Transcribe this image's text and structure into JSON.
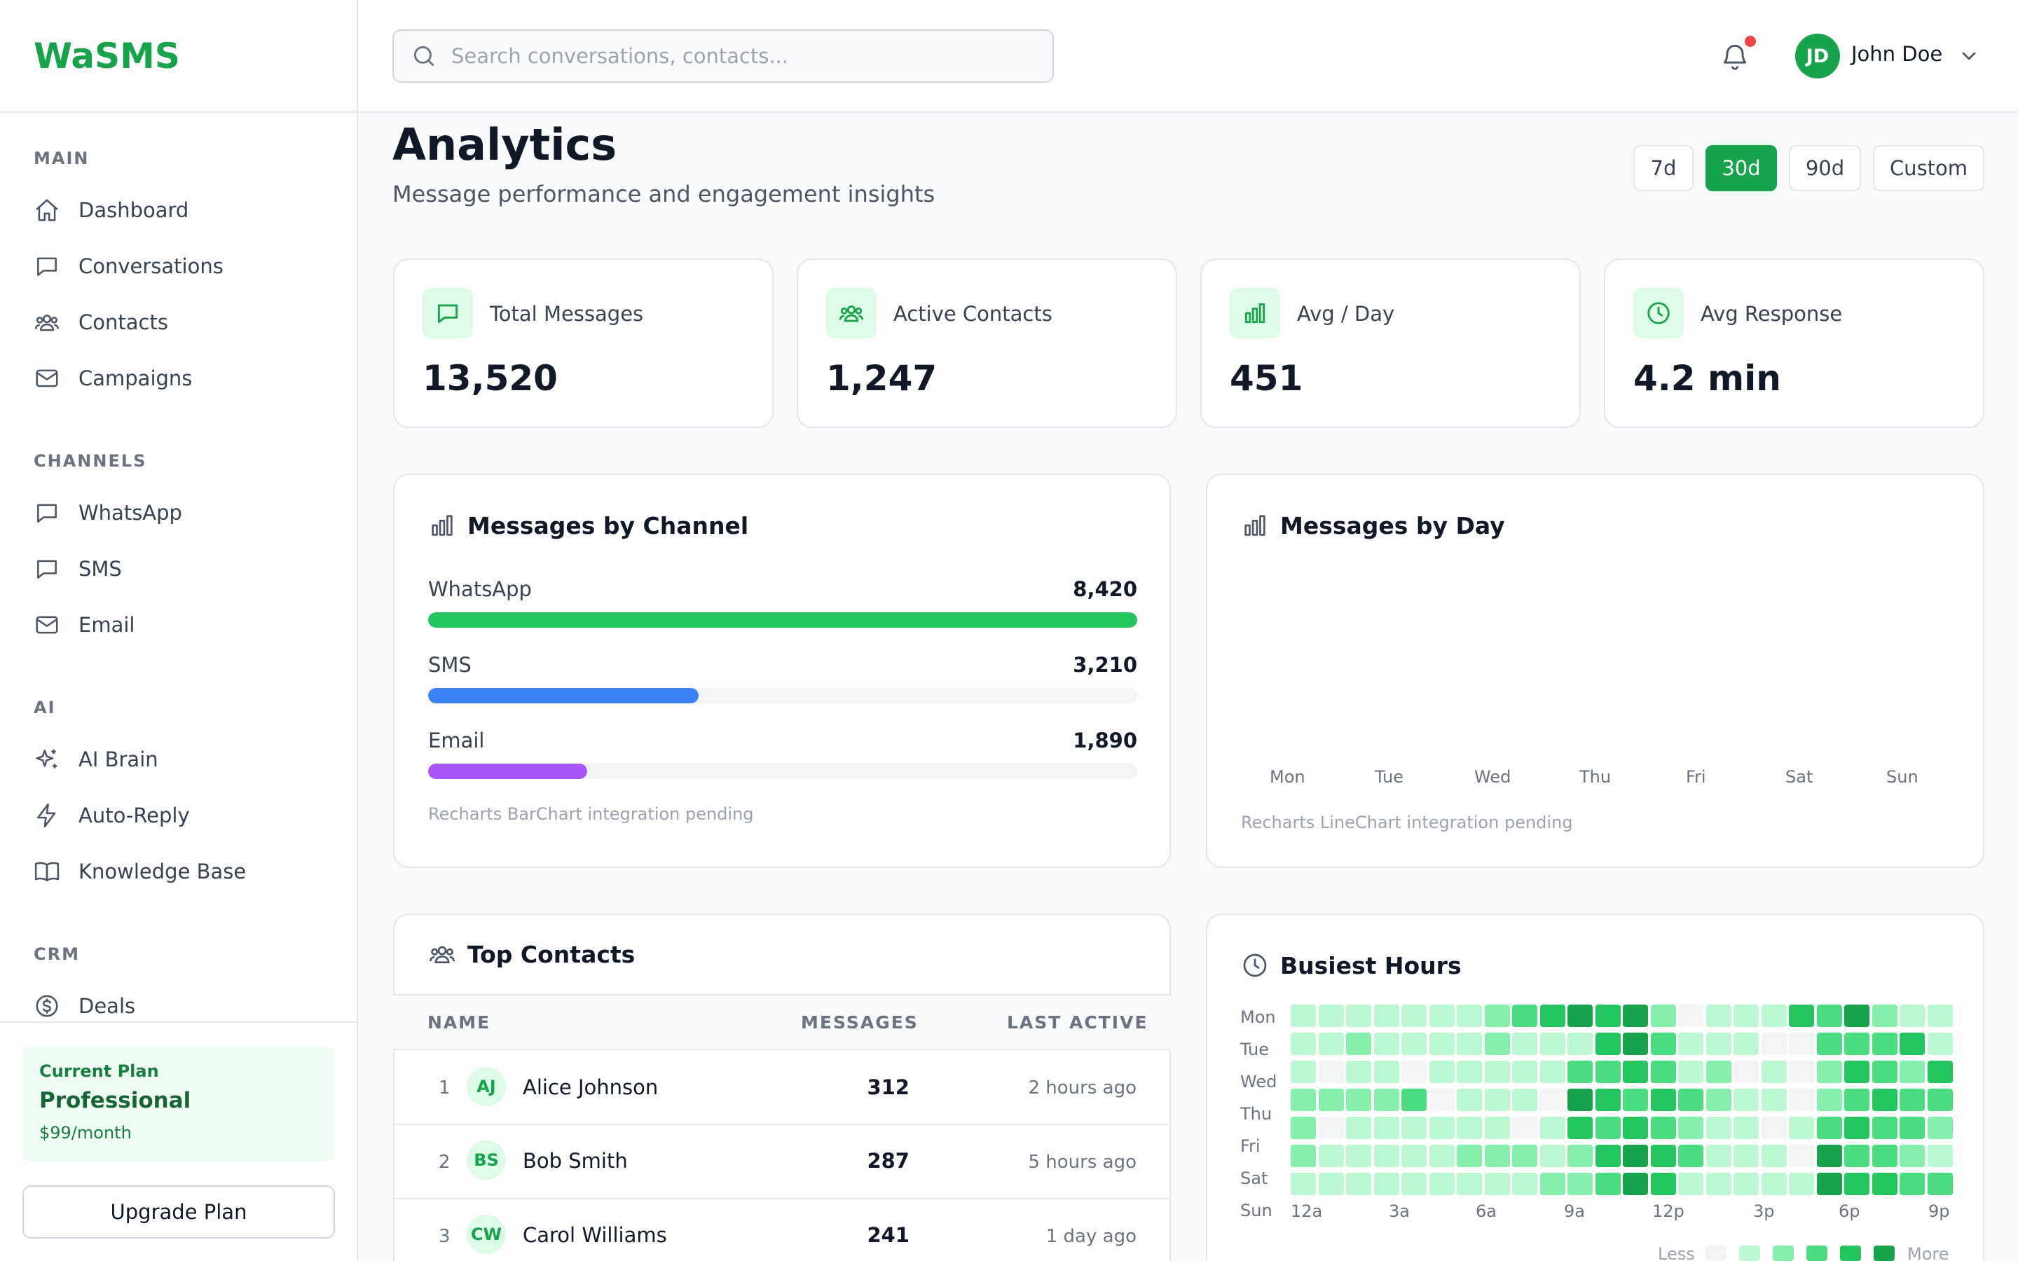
{
  "app": {
    "logo": "WaSMS"
  },
  "sidebar": {
    "sections": [
      {
        "title": "MAIN",
        "items": [
          {
            "label": "Dashboard",
            "icon": "home-icon"
          },
          {
            "label": "Conversations",
            "icon": "chat-icon"
          },
          {
            "label": "Contacts",
            "icon": "users-icon"
          },
          {
            "label": "Campaigns",
            "icon": "mail-icon"
          }
        ]
      },
      {
        "title": "CHANNELS",
        "items": [
          {
            "label": "WhatsApp",
            "icon": "chat-icon"
          },
          {
            "label": "SMS",
            "icon": "chat-icon"
          },
          {
            "label": "Email",
            "icon": "mail-icon"
          }
        ]
      },
      {
        "title": "AI",
        "items": [
          {
            "label": "AI Brain",
            "icon": "sparkles-icon"
          },
          {
            "label": "Auto-Reply",
            "icon": "bolt-icon"
          },
          {
            "label": "Knowledge Base",
            "icon": "book-icon"
          }
        ]
      },
      {
        "title": "CRM",
        "items": [
          {
            "label": "Deals",
            "icon": "dollar-icon"
          }
        ]
      }
    ],
    "plan": {
      "kicker": "Current Plan",
      "name": "Professional",
      "price": "$99/month"
    },
    "upgrade_label": "Upgrade Plan"
  },
  "topbar": {
    "search_placeholder": "Search conversations, contacts...",
    "user": {
      "initials": "JD",
      "name": "John Doe"
    }
  },
  "page": {
    "title": "Analytics",
    "subtitle": "Message performance and engagement insights",
    "ranges": [
      {
        "label": "7d",
        "active": false
      },
      {
        "label": "30d",
        "active": true
      },
      {
        "label": "90d",
        "active": false
      },
      {
        "label": "Custom",
        "active": false
      }
    ]
  },
  "stats": [
    {
      "label": "Total Messages",
      "value": "13,520",
      "icon": "chat-icon"
    },
    {
      "label": "Active Contacts",
      "value": "1,247",
      "icon": "users-icon"
    },
    {
      "label": "Avg / Day",
      "value": "451",
      "icon": "bar-chart-icon"
    },
    {
      "label": "Avg Response",
      "value": "4.2 min",
      "icon": "clock-icon"
    }
  ],
  "channel_panel": {
    "title": "Messages by Channel",
    "note": "Recharts BarChart integration pending",
    "rows": [
      {
        "label": "WhatsApp",
        "value": "8,420",
        "fraction": 1.0,
        "color": "#22c55e"
      },
      {
        "label": "SMS",
        "value": "3,210",
        "fraction": 0.381,
        "color": "#3b82f6"
      },
      {
        "label": "Email",
        "value": "1,890",
        "fraction": 0.224,
        "color": "#a855f7"
      }
    ]
  },
  "day_panel": {
    "title": "Messages by Day",
    "days": [
      "Mon",
      "Tue",
      "Wed",
      "Thu",
      "Fri",
      "Sat",
      "Sun"
    ],
    "note": "Recharts LineChart integration pending"
  },
  "contacts_panel": {
    "title": "Top Contacts",
    "columns": [
      "NAME",
      "MESSAGES",
      "LAST ACTIVE"
    ],
    "rows": [
      {
        "rank": "1",
        "initials": "AJ",
        "name": "Alice Johnson",
        "messages": "312",
        "last_active": "2 hours ago"
      },
      {
        "rank": "2",
        "initials": "BS",
        "name": "Bob Smith",
        "messages": "287",
        "last_active": "5 hours ago"
      },
      {
        "rank": "3",
        "initials": "CW",
        "name": "Carol Williams",
        "messages": "241",
        "last_active": "1 day ago"
      }
    ]
  },
  "hours_panel": {
    "title": "Busiest Hours",
    "days": [
      "Mon",
      "Tue",
      "Wed",
      "Thu",
      "Fri",
      "Sat",
      "Sun"
    ],
    "hour_labels": [
      "12a",
      "3a",
      "6a",
      "9a",
      "12p",
      "3p",
      "6p",
      "9p"
    ],
    "levels": [
      [
        1,
        1,
        1,
        1,
        1,
        1,
        1,
        2,
        3,
        4,
        5,
        4,
        5,
        2,
        0,
        1,
        1,
        1,
        4,
        3,
        5,
        2,
        1,
        1
      ],
      [
        1,
        1,
        2,
        1,
        1,
        1,
        1,
        2,
        1,
        1,
        1,
        4,
        5,
        3,
        1,
        1,
        1,
        0,
        0,
        3,
        3,
        3,
        4,
        1
      ],
      [
        1,
        0,
        1,
        1,
        0,
        1,
        1,
        1,
        1,
        1,
        3,
        3,
        4,
        3,
        1,
        2,
        0,
        1,
        0,
        2,
        4,
        3,
        2,
        4
      ],
      [
        2,
        2,
        2,
        2,
        3,
        0,
        1,
        1,
        1,
        0,
        5,
        4,
        3,
        4,
        3,
        2,
        1,
        1,
        0,
        2,
        3,
        4,
        3,
        3
      ],
      [
        2,
        0,
        1,
        1,
        1,
        1,
        1,
        1,
        0,
        1,
        4,
        3,
        4,
        3,
        2,
        1,
        1,
        0,
        1,
        3,
        4,
        3,
        3,
        2
      ],
      [
        2,
        1,
        1,
        1,
        1,
        1,
        2,
        2,
        2,
        1,
        2,
        4,
        5,
        4,
        3,
        1,
        1,
        1,
        0,
        5,
        3,
        3,
        2,
        1
      ],
      [
        1,
        1,
        1,
        1,
        1,
        1,
        1,
        1,
        1,
        2,
        2,
        3,
        5,
        4,
        1,
        1,
        1,
        1,
        1,
        5,
        4,
        4,
        3,
        3
      ]
    ],
    "legend": {
      "less": "Less",
      "more": "More"
    },
    "colors": [
      "#f3f4f6",
      "#bbf7d0",
      "#86efac",
      "#4ade80",
      "#22c55e",
      "#16a34a"
    ]
  }
}
